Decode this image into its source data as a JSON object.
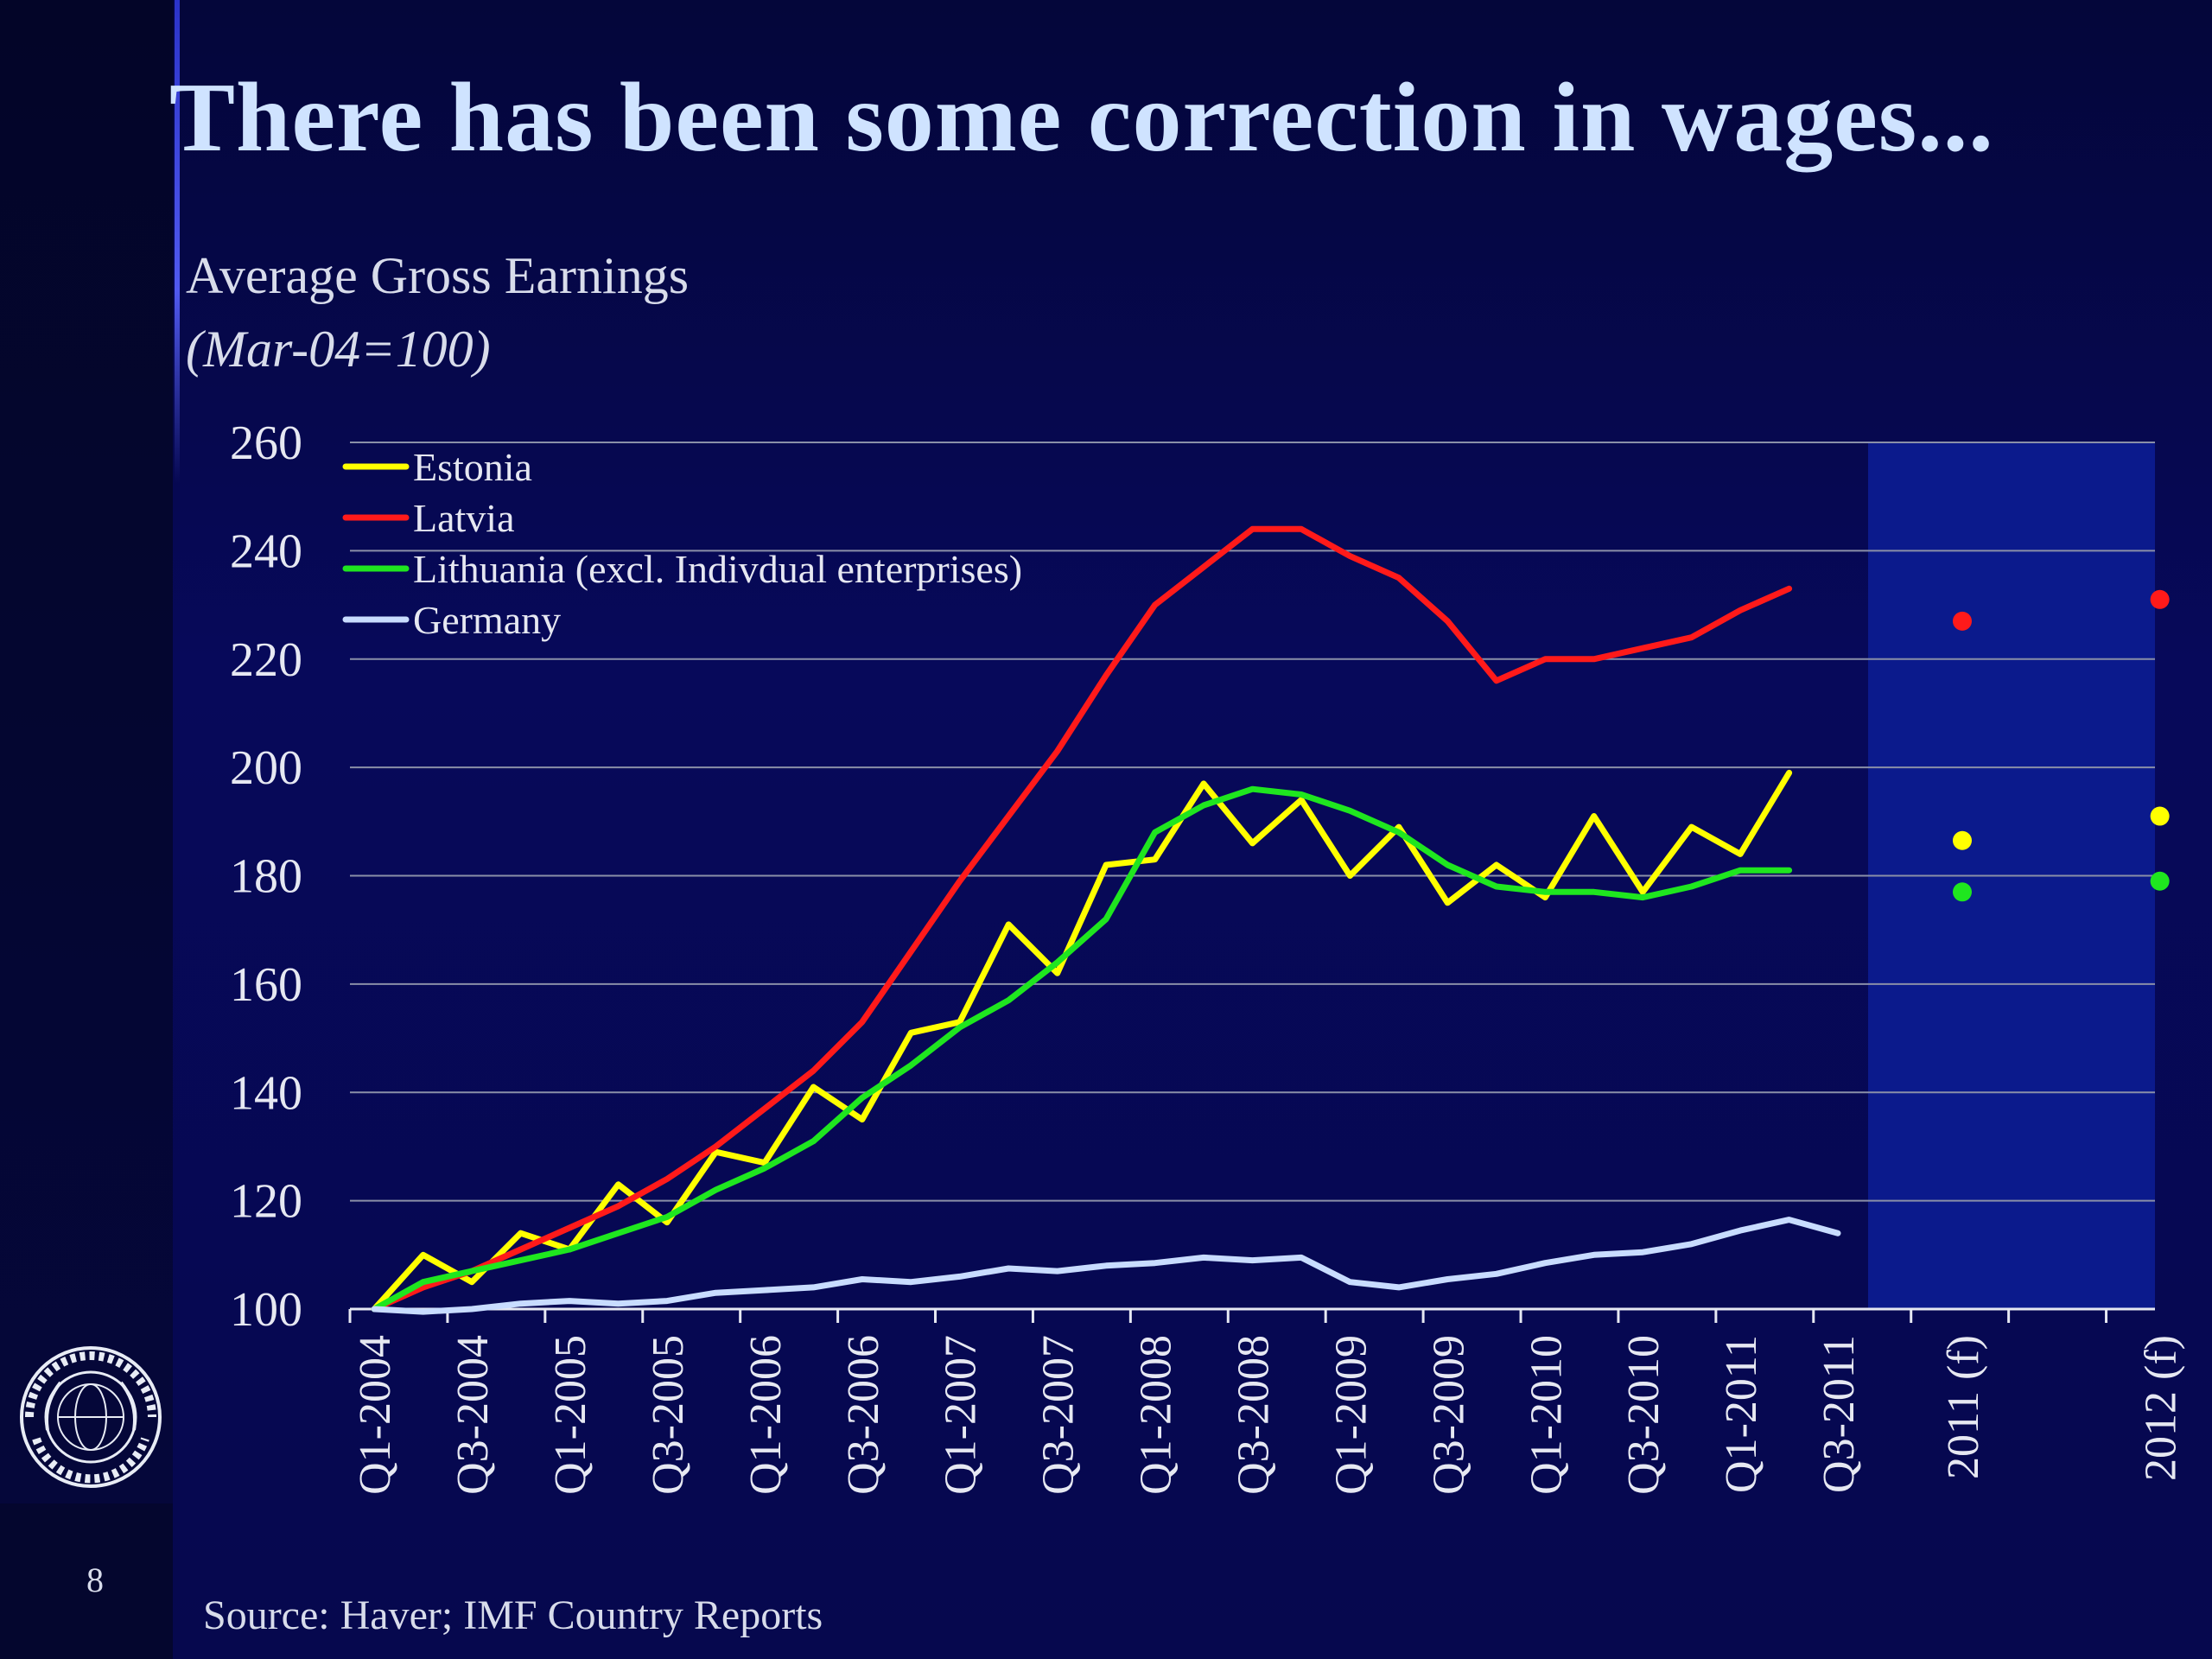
{
  "slide": {
    "title": "There has been some correction in wages...",
    "source": "Source: Haver; IMF Country Reports",
    "page_number": "8"
  },
  "colors": {
    "background": "#06084a",
    "forecast_band": "#0b1a8c",
    "estonia": "#ffff00",
    "latvia": "#ff1a1a",
    "lithuania": "#1fe61f",
    "germany": "#c8dcff"
  },
  "icons": {
    "seal": "imf-seal-icon"
  },
  "chart_data": {
    "type": "line",
    "title": "Average Gross Earnings",
    "subtitle": "(Mar-04=100)",
    "ylim": [
      100,
      260
    ],
    "yticks": [
      100,
      120,
      140,
      160,
      180,
      200,
      220,
      240,
      260
    ],
    "grid": true,
    "legend_position": "top-left",
    "x_tick_labels": [
      "Q1-2004",
      "Q3-2004",
      "Q1-2005",
      "Q3-2005",
      "Q1-2006",
      "Q3-2006",
      "Q1-2007",
      "Q3-2007",
      "Q1-2008",
      "Q3-2008",
      "Q1-2009",
      "Q3-2009",
      "Q1-2010",
      "Q3-2010",
      "Q1-2011",
      "Q3-2011",
      "2011 (f)",
      "2012 (f)"
    ],
    "quarters": [
      "Q1-2004",
      "Q2-2004",
      "Q3-2004",
      "Q4-2004",
      "Q1-2005",
      "Q2-2005",
      "Q3-2005",
      "Q4-2005",
      "Q1-2006",
      "Q2-2006",
      "Q3-2006",
      "Q4-2006",
      "Q1-2007",
      "Q2-2007",
      "Q3-2007",
      "Q4-2007",
      "Q1-2008",
      "Q2-2008",
      "Q3-2008",
      "Q4-2008",
      "Q1-2009",
      "Q2-2009",
      "Q3-2009",
      "Q4-2009",
      "Q1-2010",
      "Q2-2010",
      "Q3-2010",
      "Q4-2010",
      "Q1-2011",
      "Q2-2011",
      "Q3-2011"
    ],
    "series": [
      {
        "name": "Estonia",
        "color": "#ffff00",
        "values": [
          100,
          110,
          105,
          114,
          111,
          123,
          116,
          129,
          127,
          141,
          135,
          151,
          153,
          171,
          162,
          182,
          183,
          197,
          186,
          194,
          180,
          189,
          175,
          182,
          176,
          191,
          177,
          189,
          184,
          199
        ]
      },
      {
        "name": "Latvia",
        "color": "#ff1a1a",
        "values": [
          100,
          104,
          107,
          111,
          115,
          119,
          124,
          130,
          137,
          144,
          153,
          166,
          179,
          191,
          203,
          217,
          230,
          237,
          244,
          244,
          239,
          235,
          227,
          216,
          220,
          220,
          222,
          224,
          229,
          233
        ]
      },
      {
        "name": "Lithuania (excl. Indivdual enterprises)",
        "color": "#1fe61f",
        "values": [
          100,
          105,
          107,
          109,
          111,
          114,
          117,
          122,
          126,
          131,
          139,
          145,
          152,
          157,
          164,
          172,
          188,
          193,
          196,
          195,
          192,
          188,
          182,
          178,
          177,
          177,
          176,
          178,
          181,
          181
        ]
      },
      {
        "name": "Germany",
        "color": "#c8dcff",
        "values": [
          100,
          99.5,
          100,
          101,
          101.5,
          101,
          101.5,
          103,
          103.5,
          104,
          105.5,
          105,
          106,
          107.5,
          107,
          108,
          108.5,
          109.5,
          109,
          109.5,
          105,
          104,
          105.5,
          106.5,
          108.5,
          110,
          110.5,
          112,
          114.5,
          116.5,
          114
        ]
      }
    ],
    "forecast": {
      "labels": [
        "2011 (f)",
        "2012 (f)"
      ],
      "points": [
        {
          "series": "Latvia",
          "values": [
            227,
            231
          ]
        },
        {
          "series": "Estonia",
          "values": [
            186.5,
            191
          ]
        },
        {
          "series": "Lithuania (excl. Indivdual enterprises)",
          "values": [
            177,
            179
          ]
        }
      ]
    }
  }
}
